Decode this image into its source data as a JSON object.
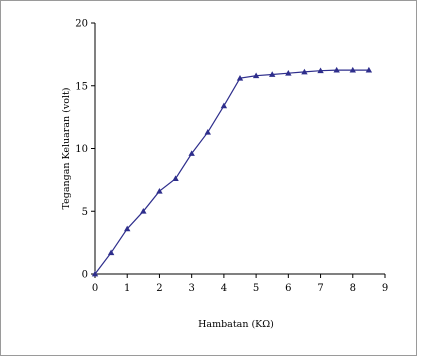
{
  "chart_data": {
    "type": "line",
    "title": "",
    "xlabel": "Hambatan (KΩ)",
    "ylabel": "Tegangan Keluaran (volt)",
    "xlim": [
      0,
      9
    ],
    "ylim": [
      0,
      20
    ],
    "xticks": [
      0,
      1,
      2,
      3,
      4,
      5,
      6,
      7,
      8,
      9
    ],
    "yticks": [
      0,
      5,
      10,
      15,
      20
    ],
    "grid": false,
    "legend": "none",
    "series": [
      {
        "color": "#2e2e8c",
        "marker": "triangle",
        "x": [
          0,
          0.5,
          1,
          1.5,
          2,
          2.5,
          3,
          3.5,
          4,
          4.5,
          5,
          5.5,
          6,
          6.5,
          7,
          7.5,
          8,
          8.5
        ],
        "y": [
          0,
          1.7,
          3.6,
          5.0,
          6.6,
          7.6,
          9.6,
          11.3,
          13.4,
          15.6,
          15.8,
          15.9,
          16.0,
          16.1,
          16.2,
          16.25,
          16.25,
          16.25
        ]
      }
    ]
  }
}
